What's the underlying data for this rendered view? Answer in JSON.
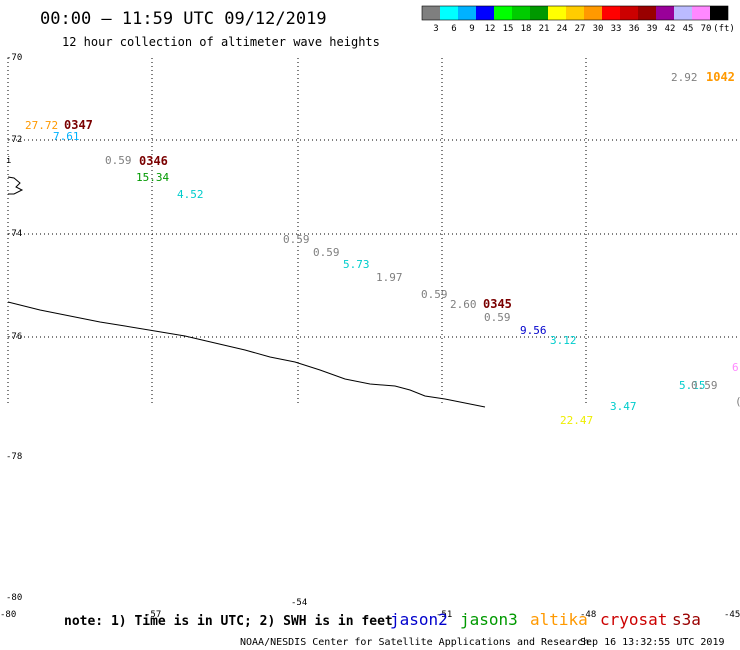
{
  "header": {
    "title": "00:00 – 11:59 UTC 09/12/2019",
    "subtitle": "12 hour collection of altimeter wave heights"
  },
  "color_scale": {
    "colors": [
      "#7f7f7f",
      "#00ffff",
      "#00b2ff",
      "#0000ff",
      "#00ff00",
      "#00cc00",
      "#009900",
      "#ffff00",
      "#ffcc00",
      "#ff9900",
      "#ff0000",
      "#cc0000",
      "#990000",
      "#990099",
      "#bbbbff",
      "#ff88ff",
      "#000000"
    ],
    "labels": [
      "3",
      "6",
      "9",
      "12",
      "15",
      "18",
      "21",
      "24",
      "27",
      "30",
      "33",
      "36",
      "39",
      "42",
      "45",
      "70",
      "(ft)"
    ]
  },
  "map": {
    "lat_labels": [
      "-70",
      "-72",
      "-74",
      "-76",
      "-78",
      "-80"
    ],
    "lon_labels": [
      "-57",
      "-54",
      "-51",
      "-48",
      "-45"
    ],
    "edge_labels": {
      "bottom_left": "-80",
      "left_mid_mark": "i"
    }
  },
  "passes": [
    {
      "id": "0347",
      "color": "#7a0000"
    },
    {
      "id": "0346",
      "color": "#7a0000"
    },
    {
      "id": "0345",
      "color": "#7a0000"
    },
    {
      "id": "1042",
      "color": "#ff9900"
    }
  ],
  "observations": [
    {
      "value": "27.72",
      "color": "#ff9900"
    },
    {
      "value": "7.61",
      "color": "#00b2ff"
    },
    {
      "value": "0.59",
      "color": "#7f7f7f"
    },
    {
      "value": "15.34",
      "color": "#009900"
    },
    {
      "value": "4.52",
      "color": "#00cccc"
    },
    {
      "value": "0.59",
      "color": "#7f7f7f"
    },
    {
      "value": "0.59",
      "color": "#7f7f7f"
    },
    {
      "value": "5.73",
      "color": "#00cccc"
    },
    {
      "value": "1.97",
      "color": "#7f7f7f"
    },
    {
      "value": "0.59",
      "color": "#7f7f7f"
    },
    {
      "value": "2.60",
      "color": "#7f7f7f"
    },
    {
      "value": "0.59",
      "color": "#7f7f7f"
    },
    {
      "value": "9.56",
      "color": "#0000cc"
    },
    {
      "value": "3.12",
      "color": "#00cccc"
    },
    {
      "value": "2.92",
      "color": "#7f7f7f"
    },
    {
      "value": "22.47",
      "color": "#eeee00"
    },
    {
      "value": "3.47",
      "color": "#00cccc"
    },
    {
      "value": "5.15",
      "color": "#00cccc"
    },
    {
      "value": "0.59",
      "color": "#7f7f7f"
    },
    {
      "value": "6",
      "color": "#ff88ff"
    },
    {
      "value": "(",
      "color": "#7f7f7f"
    }
  ],
  "footer": {
    "note": "note: 1) Time is in UTC; 2) SWH is in feet",
    "satellites": [
      {
        "name": "jason2",
        "color": "#0000cc"
      },
      {
        "name": "jason3",
        "color": "#009900"
      },
      {
        "name": "altika",
        "color": "#ff9900"
      },
      {
        "name": "cryosat",
        "color": "#cc0000"
      },
      {
        "name": "s3a",
        "color": "#990000"
      }
    ],
    "credit": "NOAA/NESDIS Center for Satellite Applications and Research",
    "timestamp": "Sep 16 13:32:55 UTC 2019"
  }
}
